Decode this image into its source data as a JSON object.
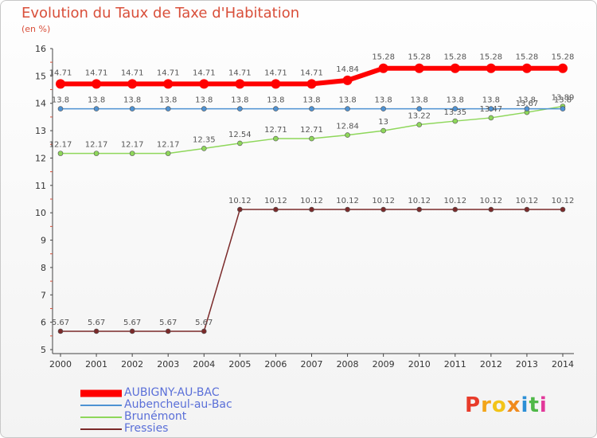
{
  "header": {
    "title": "Evolution du Taux de Taxe d'Habitation",
    "unit": "(en %)"
  },
  "logo": "Proxiti",
  "chart_data": {
    "type": "line",
    "title": "Evolution du Taux de Taxe d'Habitation",
    "ylabel": "(en %)",
    "xlabel": "",
    "ylim": [
      5,
      16
    ],
    "yticks": [
      5,
      6,
      7,
      8,
      9,
      10,
      11,
      12,
      13,
      14,
      15,
      16
    ],
    "grid": false,
    "legend_position": "bottom-left",
    "x": [
      "2000",
      "2001",
      "2002",
      "2003",
      "2004",
      "2005",
      "2006",
      "2007",
      "2008",
      "2009",
      "2010",
      "2011",
      "2012",
      "2013",
      "2014"
    ],
    "series": [
      {
        "name": "AUBIGNY-AU-BAC",
        "color": "#ff0000",
        "values": [
          14.71,
          14.71,
          14.71,
          14.71,
          14.71,
          14.71,
          14.71,
          14.71,
          14.84,
          15.28,
          15.28,
          15.28,
          15.28,
          15.28,
          15.28
        ],
        "labels": [
          "14.71",
          "14.71",
          "14.71",
          "14.71",
          "14.71",
          "14.71",
          "14.71",
          "14.71",
          "14.84",
          "15.28",
          "15.28",
          "15.28",
          "15.28",
          "15.28",
          "15.28"
        ]
      },
      {
        "name": "Aubencheul-au-Bac",
        "color": "#4e92d3",
        "values": [
          13.8,
          13.8,
          13.8,
          13.8,
          13.8,
          13.8,
          13.8,
          13.8,
          13.8,
          13.8,
          13.8,
          13.8,
          13.8,
          13.8,
          13.8
        ],
        "labels": [
          "13.8",
          "13.8",
          "13.8",
          "13.8",
          "13.8",
          "13.8",
          "13.8",
          "13.8",
          "13.8",
          "13.8",
          "13.8",
          "13.8",
          "13.8",
          "13.8",
          "13.8"
        ]
      },
      {
        "name": "Brunémont",
        "color": "#8ed75a",
        "values": [
          12.17,
          12.17,
          12.17,
          12.17,
          12.35,
          12.54,
          12.71,
          12.71,
          12.84,
          13.0,
          13.22,
          13.35,
          13.47,
          13.67,
          13.89
        ],
        "labels": [
          "12.17",
          "12.17",
          "12.17",
          "12.17",
          "12.35",
          "12.54",
          "12.71",
          "12.71",
          "12.84",
          "13",
          "13.22",
          "13.35",
          "13.47",
          "13.67",
          "13.89"
        ]
      },
      {
        "name": "Fressies",
        "color": "#7b2a2a",
        "values": [
          5.67,
          5.67,
          5.67,
          5.67,
          5.67,
          10.12,
          10.12,
          10.12,
          10.12,
          10.12,
          10.12,
          10.12,
          10.12,
          10.12,
          10.12
        ],
        "labels": [
          "5.67",
          "5.67",
          "5.67",
          "5.67",
          "5.67",
          "10.12",
          "10.12",
          "10.12",
          "10.12",
          "10.12",
          "10.12",
          "10.12",
          "10.12",
          "10.12",
          "10.12"
        ]
      }
    ]
  }
}
